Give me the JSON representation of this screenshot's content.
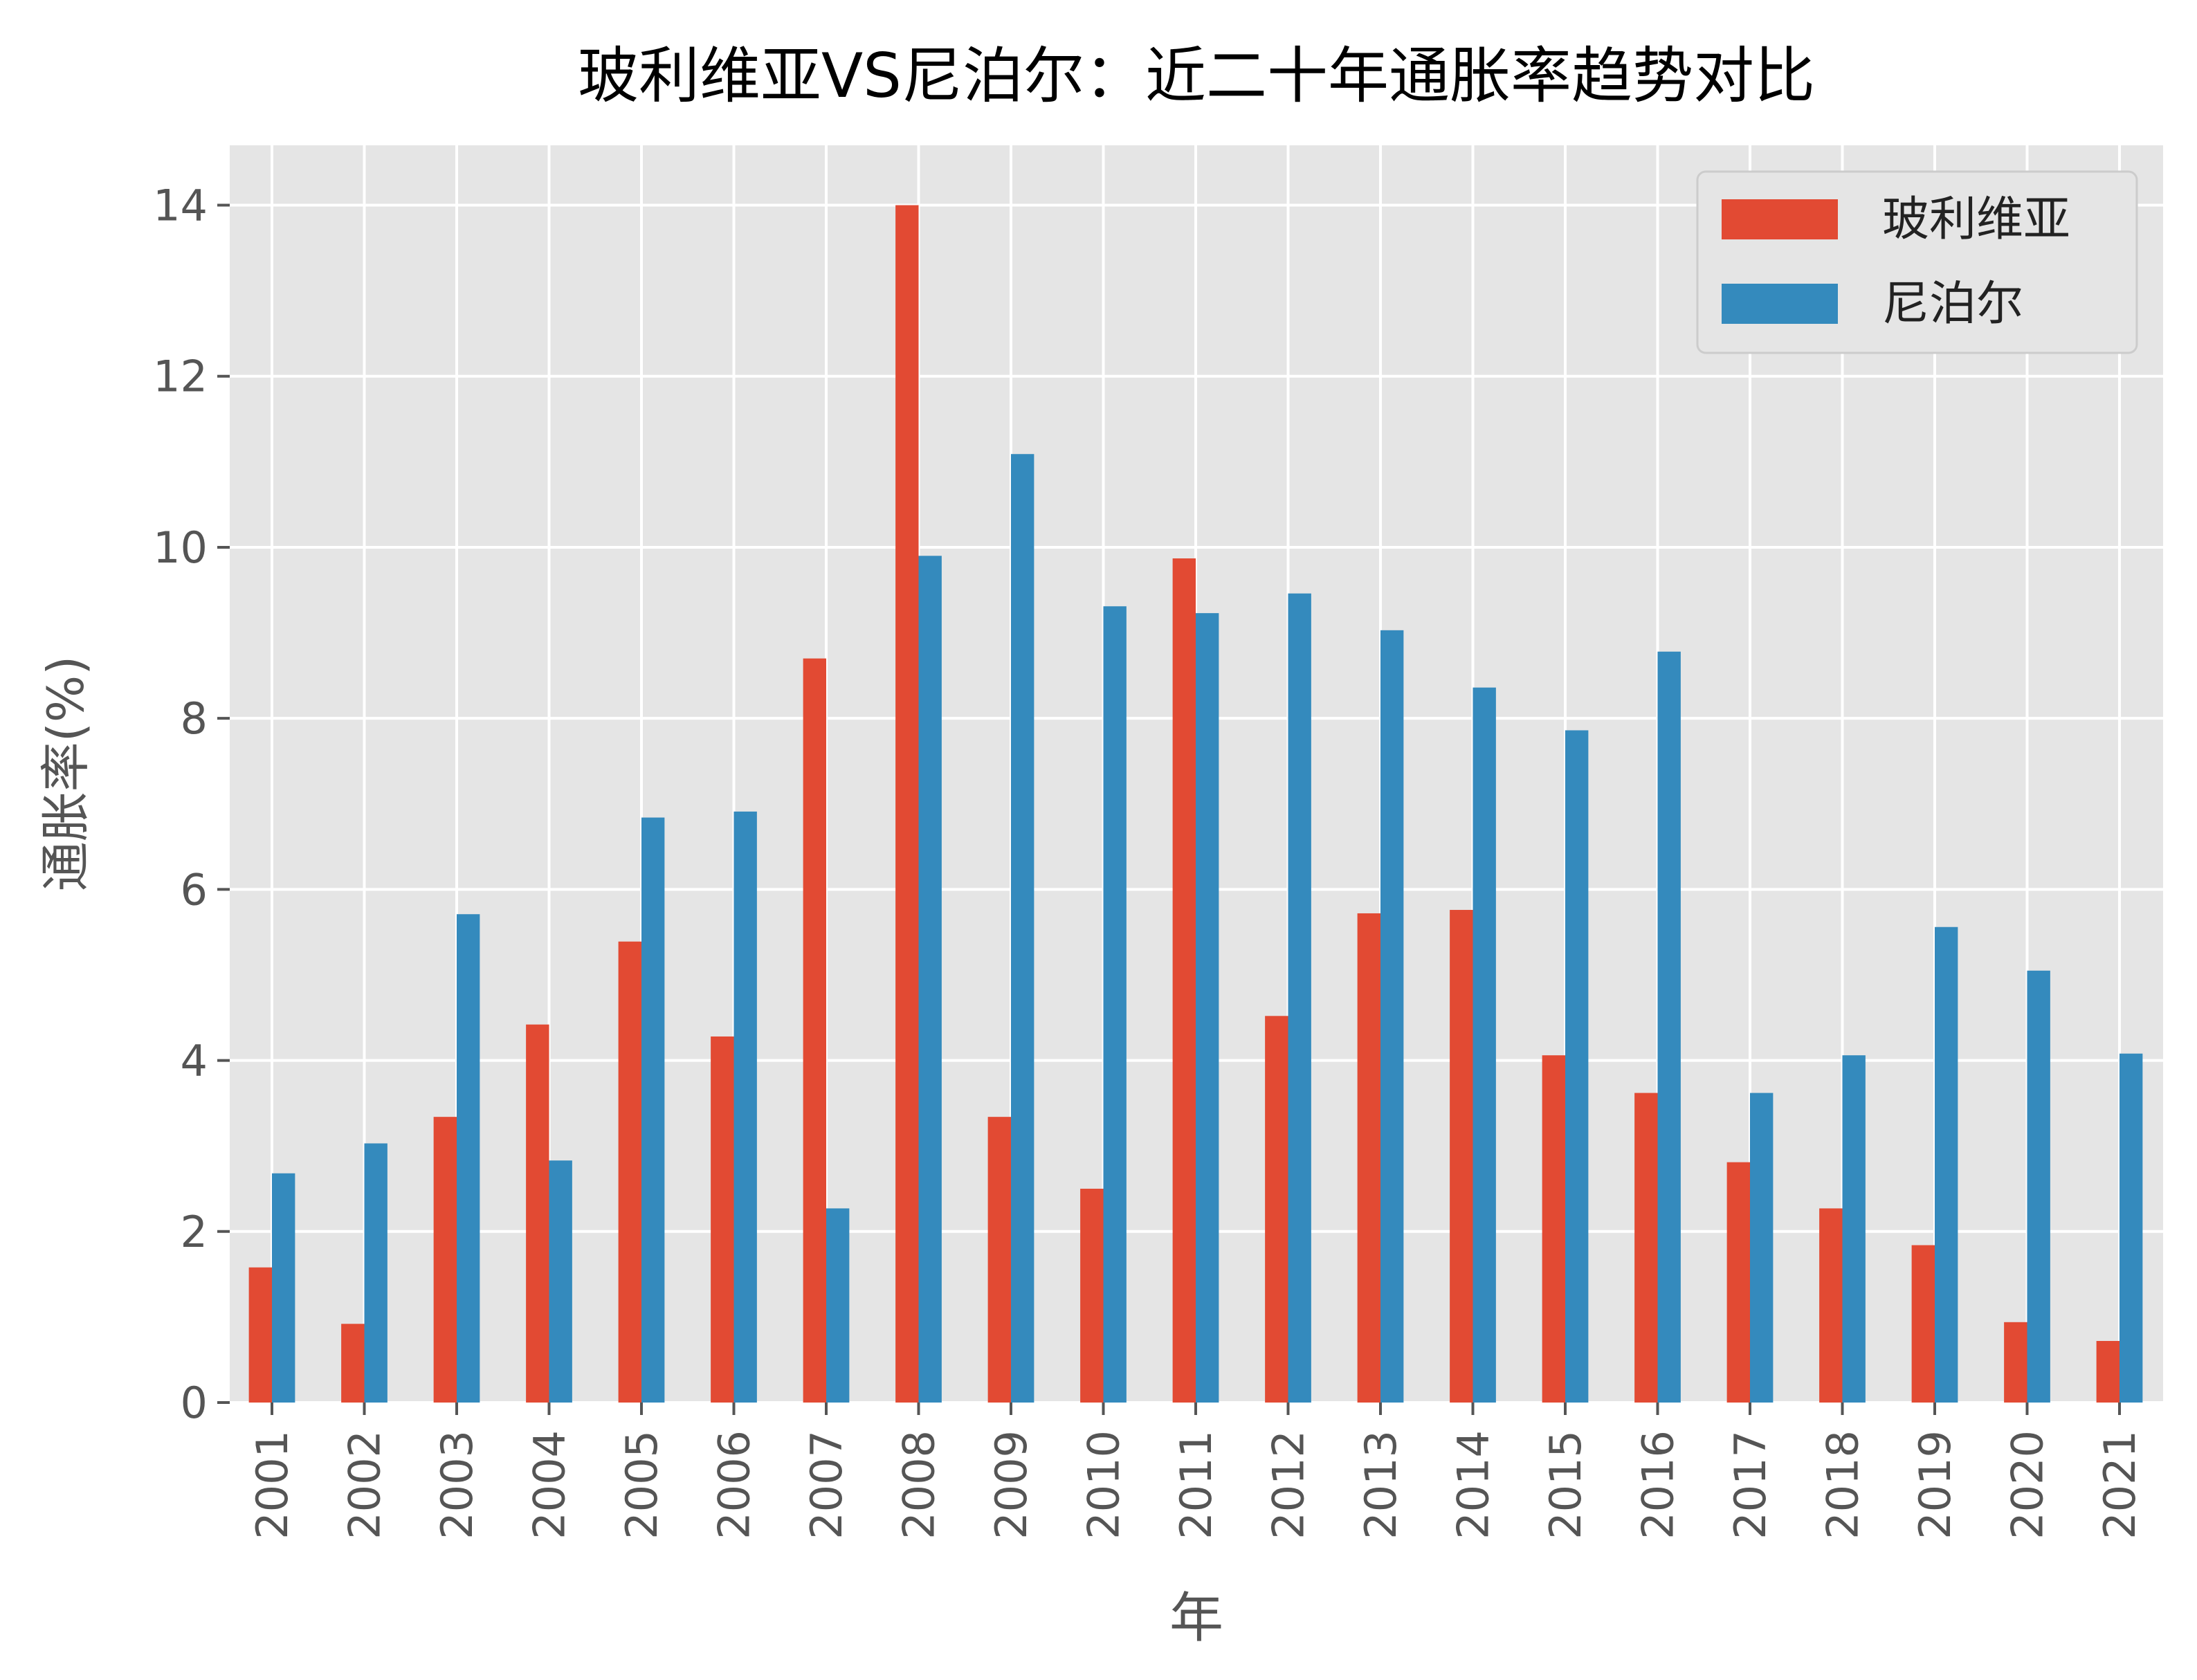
{
  "chart_data": {
    "type": "bar",
    "title": "玻利维亚VS尼泊尔：近二十年通胀率趋势对比",
    "xlabel": "年",
    "ylabel": "通胀率(%)",
    "ylim": [
      0,
      14.7
    ],
    "yticks": [
      0,
      2,
      4,
      6,
      8,
      10,
      12,
      14
    ],
    "grid": true,
    "legend_position": "top-right",
    "categories": [
      "2001",
      "2002",
      "2003",
      "2004",
      "2005",
      "2006",
      "2007",
      "2008",
      "2009",
      "2010",
      "2011",
      "2012",
      "2013",
      "2014",
      "2015",
      "2016",
      "2017",
      "2018",
      "2019",
      "2020",
      "2021"
    ],
    "series": [
      {
        "name": "玻利维亚",
        "color": "#E24A33",
        "values": [
          1.58,
          0.92,
          3.34,
          4.42,
          5.39,
          4.28,
          8.7,
          14.0,
          3.34,
          2.5,
          9.87,
          4.52,
          5.72,
          5.76,
          4.06,
          3.62,
          2.81,
          2.27,
          1.84,
          0.94,
          0.72
        ]
      },
      {
        "name": "尼泊尔",
        "color": "#348ABD",
        "values": [
          2.68,
          3.03,
          5.71,
          2.83,
          6.84,
          6.91,
          2.27,
          9.9,
          11.09,
          9.31,
          9.23,
          9.46,
          9.03,
          8.36,
          7.86,
          8.78,
          3.62,
          4.06,
          5.56,
          5.05,
          4.08
        ]
      }
    ]
  }
}
